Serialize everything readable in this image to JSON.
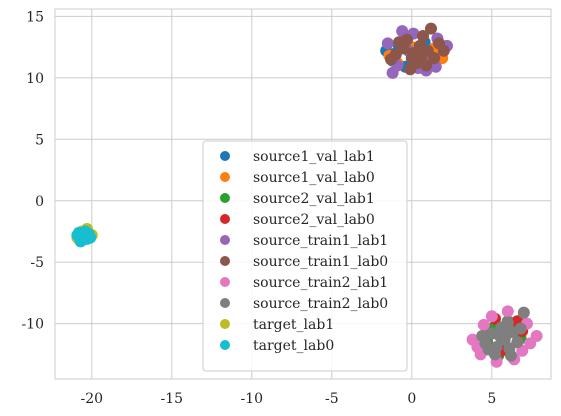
{
  "chart_data": {
    "type": "scatter",
    "title": "",
    "xlabel": "",
    "ylabel": "",
    "xlim": [
      -22.3,
      8.7
    ],
    "ylim": [
      -14.5,
      15.6
    ],
    "grid": true,
    "legend_position": "center-bottom",
    "x_ticks": [
      "-20",
      "-15",
      "-10",
      "-5",
      "0",
      "5"
    ],
    "x_tick_values": [
      -20,
      -15,
      -10,
      -5,
      0,
      5
    ],
    "y_ticks": [
      "15",
      "10",
      "5",
      "0",
      "-5",
      "-10"
    ],
    "y_tick_values": [
      15,
      10,
      5,
      0,
      -5,
      -10
    ],
    "series": [
      {
        "name": "source1_val_lab1",
        "color": "#1f77b4",
        "points": [
          [
            -1.6,
            12.2
          ],
          [
            -1.2,
            11.4
          ],
          [
            -0.8,
            12.6
          ],
          [
            -0.4,
            10.9
          ],
          [
            0.2,
            11.8
          ],
          [
            0.8,
            12.9
          ],
          [
            1.2,
            11.2
          ],
          [
            -1.0,
            12.0
          ]
        ]
      },
      {
        "name": "source1_val_lab0",
        "color": "#ff7f0e",
        "points": [
          [
            -1.4,
            11.8
          ],
          [
            -0.6,
            12.8
          ],
          [
            0.5,
            11.0
          ],
          [
            1.4,
            12.4
          ],
          [
            1.9,
            11.6
          ],
          [
            0.0,
            12.5
          ],
          [
            -0.9,
            11.2
          ],
          [
            1.8,
            12.2
          ]
        ]
      },
      {
        "name": "source2_val_lab1",
        "color": "#2ca02c",
        "points": [
          [
            5.0,
            -10.4
          ],
          [
            5.8,
            -11.8
          ],
          [
            6.4,
            -10.2
          ],
          [
            5.4,
            -12.6
          ],
          [
            6.8,
            -11.2
          ],
          [
            4.7,
            -11.4
          ],
          [
            6.0,
            -9.8
          ]
        ]
      },
      {
        "name": "source2_val_lab0",
        "color": "#d62728",
        "points": [
          [
            5.2,
            -9.6
          ],
          [
            6.6,
            -9.8
          ],
          [
            4.6,
            -11.0
          ],
          [
            5.6,
            -12.2
          ],
          [
            6.9,
            -10.6
          ],
          [
            5.9,
            -10.4
          ],
          [
            4.9,
            -12.0
          ]
        ]
      },
      {
        "name": "source_train1_lab1",
        "color": "#9467bd",
        "points": [
          [
            -1.2,
            10.4
          ],
          [
            -0.6,
            13.8
          ],
          [
            0.1,
            13.6
          ],
          [
            0.9,
            10.6
          ],
          [
            1.6,
            13.2
          ],
          [
            -1.5,
            12.8
          ],
          [
            2.2,
            12.6
          ],
          [
            0.4,
            10.8
          ],
          [
            -0.2,
            12.2
          ],
          [
            1.0,
            11.8
          ],
          [
            -0.9,
            11.0
          ],
          [
            1.5,
            10.9
          ]
        ]
      },
      {
        "name": "source_train1_lab0",
        "color": "#8c564b",
        "points": [
          [
            -1.0,
            11.9
          ],
          [
            -0.5,
            12.4
          ],
          [
            0.0,
            11.6
          ],
          [
            0.5,
            12.6
          ],
          [
            1.0,
            12.2
          ],
          [
            1.4,
            11.6
          ],
          [
            -0.3,
            13.1
          ],
          [
            0.7,
            13.4
          ],
          [
            1.2,
            14.0
          ],
          [
            -0.8,
            12.9
          ],
          [
            0.3,
            11.2
          ],
          [
            1.7,
            12.8
          ],
          [
            0.9,
            11.0
          ],
          [
            -1.3,
            11.5
          ],
          [
            0.1,
            12.0
          ],
          [
            2.0,
            12.2
          ],
          [
            -0.1,
            10.7
          ],
          [
            0.6,
            11.8
          ]
        ]
      },
      {
        "name": "source_train2_lab1",
        "color": "#e377c2",
        "points": [
          [
            3.8,
            -11.3
          ],
          [
            4.3,
            -12.5
          ],
          [
            4.5,
            -10.1
          ],
          [
            5.3,
            -13.1
          ],
          [
            6.0,
            -9.0
          ],
          [
            6.9,
            -12.2
          ],
          [
            7.2,
            -10.0
          ],
          [
            7.8,
            -11.0
          ],
          [
            4.1,
            -11.9
          ],
          [
            6.4,
            -12.9
          ],
          [
            5.0,
            -9.4
          ],
          [
            7.4,
            -11.6
          ]
        ]
      },
      {
        "name": "source_train2_lab0",
        "color": "#7f7f7f",
        "points": [
          [
            4.6,
            -11.6
          ],
          [
            5.0,
            -10.8
          ],
          [
            5.3,
            -11.9
          ],
          [
            5.6,
            -10.3
          ],
          [
            5.8,
            -11.3
          ],
          [
            6.1,
            -12.0
          ],
          [
            6.3,
            -10.7
          ],
          [
            6.6,
            -11.5
          ],
          [
            5.2,
            -12.5
          ],
          [
            6.0,
            -9.9
          ],
          [
            4.8,
            -12.1
          ],
          [
            6.8,
            -10.4
          ],
          [
            5.5,
            -11.0
          ],
          [
            6.2,
            -12.6
          ],
          [
            4.4,
            -11.0
          ],
          [
            7.0,
            -9.1
          ],
          [
            5.9,
            -10.9
          ]
        ]
      },
      {
        "name": "target_lab1",
        "color": "#bcbd22",
        "points": [
          [
            -20.6,
            -2.5
          ],
          [
            -20.0,
            -2.8
          ],
          [
            -20.9,
            -3.0
          ],
          [
            -20.3,
            -2.3
          ]
        ]
      },
      {
        "name": "target_lab0",
        "color": "#17becf",
        "points": [
          [
            -20.8,
            -2.6
          ],
          [
            -20.5,
            -2.9
          ],
          [
            -20.2,
            -2.7
          ],
          [
            -20.6,
            -3.2
          ],
          [
            -20.3,
            -3.1
          ],
          [
            -20.9,
            -2.8
          ],
          [
            -20.4,
            -2.5
          ],
          [
            -20.1,
            -3.0
          ],
          [
            -20.7,
            -3.3
          ],
          [
            -20.4,
            -2.7
          ]
        ]
      }
    ]
  }
}
